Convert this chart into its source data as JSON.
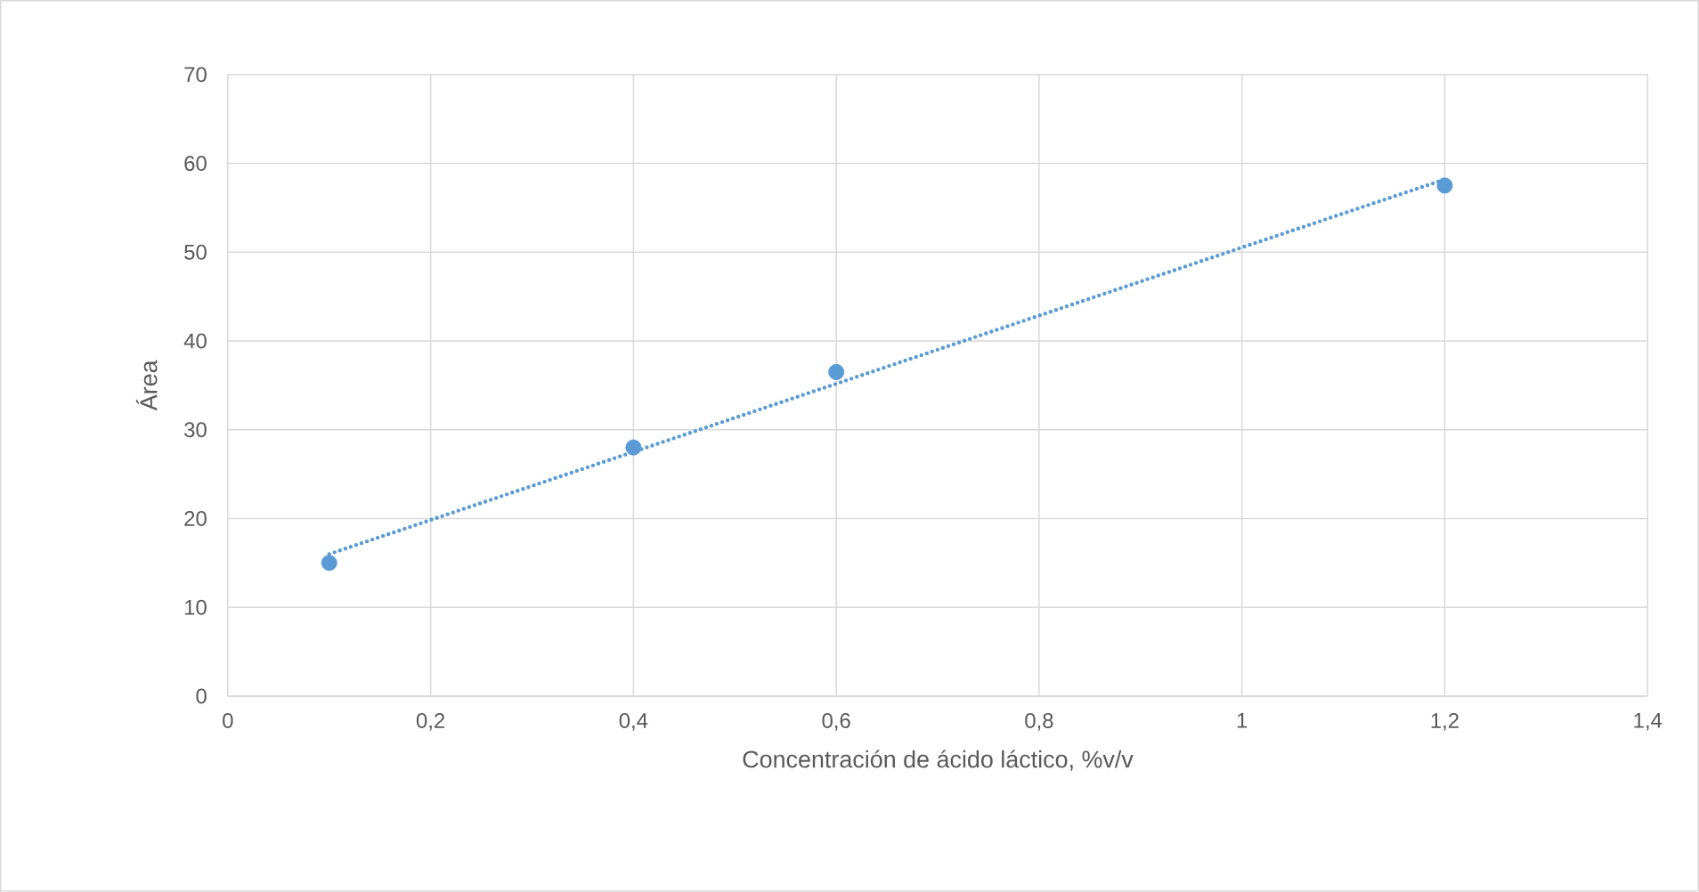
{
  "chart_data": {
    "type": "scatter",
    "xlabel": "Concentración de ácido láctico, %v/v",
    "ylabel": "Área",
    "x": [
      0.1,
      0.4,
      0.6,
      1.2
    ],
    "series": [
      {
        "color": "#5b9bd5",
        "marker": "circle",
        "values": [
          15,
          28,
          36.5,
          57.5
        ]
      },
      {
        "type": "line",
        "color": "#5b9bd5",
        "marker": "none",
        "line_style": "dotted",
        "x": [
          0.1,
          1.2
        ],
        "values": [
          16,
          58.2
        ]
      }
    ],
    "xlim": [
      0,
      1.4
    ],
    "ylim": [
      0,
      70
    ],
    "xticks": [
      0,
      {
        "value": 0.2,
        "label": "0,2"
      },
      {
        "value": 0.4,
        "label": "0,4"
      },
      {
        "value": 0.6,
        "label": "0,6"
      },
      {
        "value": 0.8,
        "label": "0,8"
      },
      1,
      {
        "value": 1.2,
        "label": "1,2"
      },
      {
        "value": 1.4,
        "label": "1,4"
      }
    ],
    "yticks": [
      0,
      10,
      20,
      30,
      40,
      50,
      60,
      70
    ],
    "grid": true
  }
}
